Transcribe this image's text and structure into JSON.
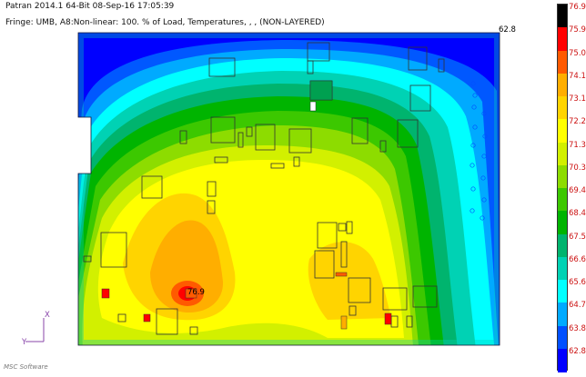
{
  "header": {
    "line1": "Patran 2014.1 64-Bit 08-Sep-16 17:05:39",
    "line2": "Fringe: UMB, A8:Non-linear: 100. % of Load, Temperatures, , , (NON-LAYERED)"
  },
  "max_label": "62.8",
  "local_value": "76.9",
  "triad": {
    "x": "X",
    "y": "Y"
  },
  "logo_text": "MSC Software",
  "colors": {
    "background": "#ffffff",
    "label_text": "#cc1111"
  },
  "legend": [
    {
      "label": "76.9",
      "color": "#000000"
    },
    {
      "label": "75.9",
      "color": "#ff0000"
    },
    {
      "label": "75.0",
      "color": "#ff5a00"
    },
    {
      "label": "74.1",
      "color": "#ffae00"
    },
    {
      "label": "73.1",
      "color": "#ffd400"
    },
    {
      "label": "72.2",
      "color": "#ffff00"
    },
    {
      "label": "71.3",
      "color": "#d2f000"
    },
    {
      "label": "70.3",
      "color": "#8ddc00"
    },
    {
      "label": "69.4",
      "color": "#3cc800"
    },
    {
      "label": "68.4",
      "color": "#00b400"
    },
    {
      "label": "67.5",
      "color": "#00b46e"
    },
    {
      "label": "66.6",
      "color": "#00d2b4"
    },
    {
      "label": "65.6",
      "color": "#00ffff"
    },
    {
      "label": "64.7",
      "color": "#00aaff"
    },
    {
      "label": "63.8",
      "color": "#0050ff"
    },
    {
      "label": "62.8",
      "color": "#0000ff"
    }
  ]
}
